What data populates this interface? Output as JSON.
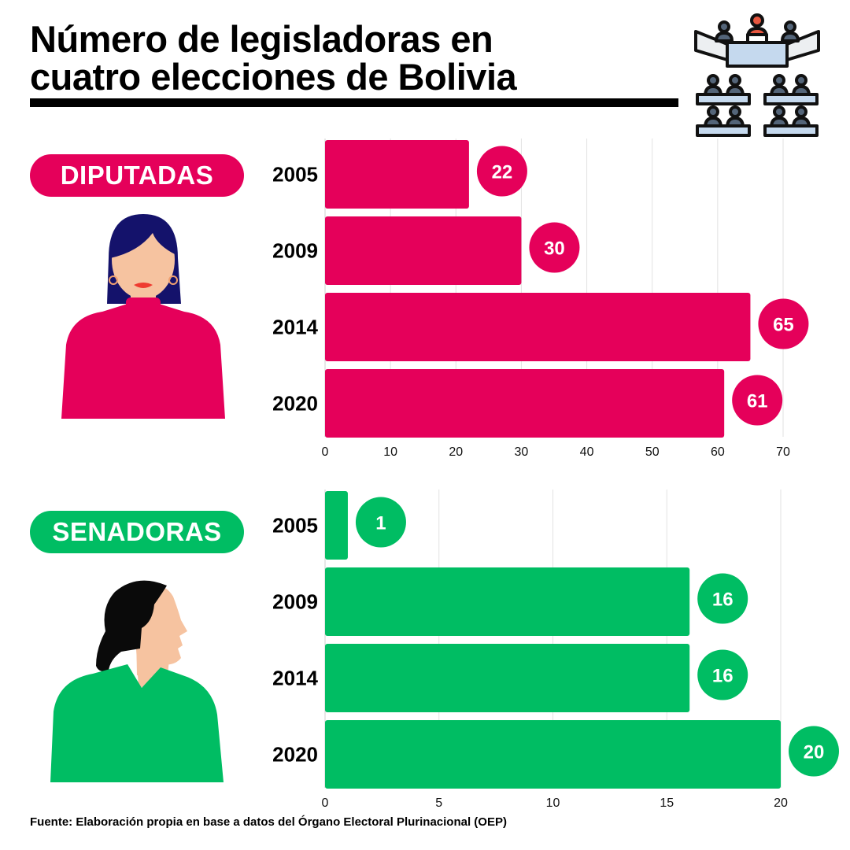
{
  "title": {
    "line1": "Número de legisladoras en",
    "line2": "cuatro elecciones de Bolivia"
  },
  "colors": {
    "diputadas": "#e5005a",
    "senadoras": "#00bd63"
  },
  "icons": {
    "header": "parliament-chamber-icon",
    "diputadas": "woman-front-portrait-icon",
    "senadoras": "woman-profile-portrait-icon"
  },
  "chart_data": [
    {
      "type": "bar",
      "orientation": "horizontal",
      "badge": "DIPUTADAS",
      "categories": [
        "2005",
        "2009",
        "2014",
        "2020"
      ],
      "values": [
        22,
        30,
        65,
        61
      ],
      "xlim": [
        0,
        70
      ],
      "xticks": [
        0,
        10,
        20,
        30,
        40,
        50,
        60,
        70
      ],
      "grid": true,
      "color": "#e5005a"
    },
    {
      "type": "bar",
      "orientation": "horizontal",
      "badge": "SENADORAS",
      "categories": [
        "2005",
        "2009",
        "2014",
        "2020"
      ],
      "values": [
        1,
        16,
        16,
        20
      ],
      "xlim": [
        0,
        20
      ],
      "xticks": [
        0,
        5,
        10,
        15,
        20
      ],
      "grid": true,
      "color": "#00bd63"
    }
  ],
  "source": "Fuente: Elaboración propia en base a datos del Órgano Electoral Plurinacional (OEP)"
}
